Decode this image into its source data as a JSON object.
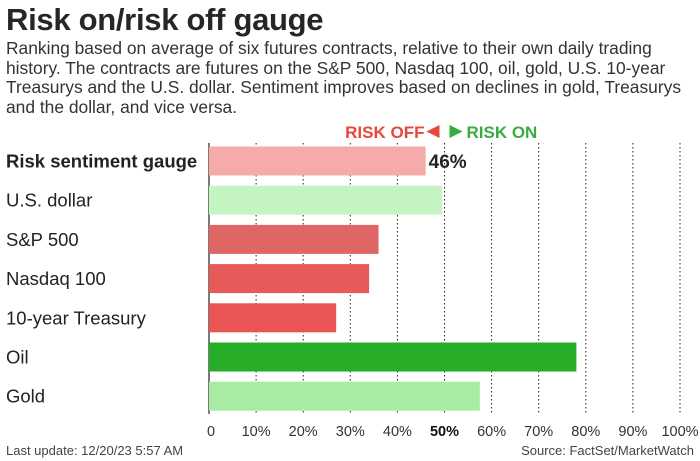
{
  "chart_data": {
    "type": "bar",
    "orientation": "horizontal",
    "title": "Risk on/risk off gauge",
    "subtitle": "Ranking based on average of six futures contracts, relative to their own daily trading history. The contracts are futures on the S&P 500, Nasdaq 100, oil, gold, U.S. 10-year Treasurys and the U.S. dollar. Sentiment improves based on declines in gold, Treasurys and the dollar, and vice versa.",
    "direction_labels": {
      "off": "RISK OFF",
      "on": "RISK ON"
    },
    "categories": [
      "Risk sentiment gauge",
      "U.S. dollar",
      "S&P 500",
      "Nasdaq 100",
      "10-year Treasury",
      "Oil",
      "Gold"
    ],
    "values": [
      46,
      49.5,
      36,
      34,
      27,
      78,
      57.5
    ],
    "value_labels": [
      "46%",
      "",
      "",
      "",
      "",
      "",
      ""
    ],
    "bar_colors": [
      "#f7aaaa",
      "#c4f5c0",
      "#e06666",
      "#e85a5a",
      "#ea5454",
      "#27ad27",
      "#a8eca4"
    ],
    "xlim": [
      0,
      100
    ],
    "x_ticks": [
      0,
      10,
      20,
      30,
      40,
      50,
      60,
      70,
      80,
      90,
      100
    ],
    "x_tick_labels": [
      "0",
      "10%",
      "20%",
      "30%",
      "40%",
      "50%",
      "60%",
      "70%",
      "80%",
      "90%",
      "100%"
    ],
    "highlight_tick": 50,
    "grid": true,
    "xlabel": "",
    "ylabel": ""
  },
  "colors": {
    "risk_off": "#e8463c",
    "risk_on": "#3aab43",
    "grid": "#222222"
  },
  "footer": {
    "last_update": "Last update: 12/20/23 5:57 AM",
    "source": "Source: FactSet/MarketWatch"
  }
}
